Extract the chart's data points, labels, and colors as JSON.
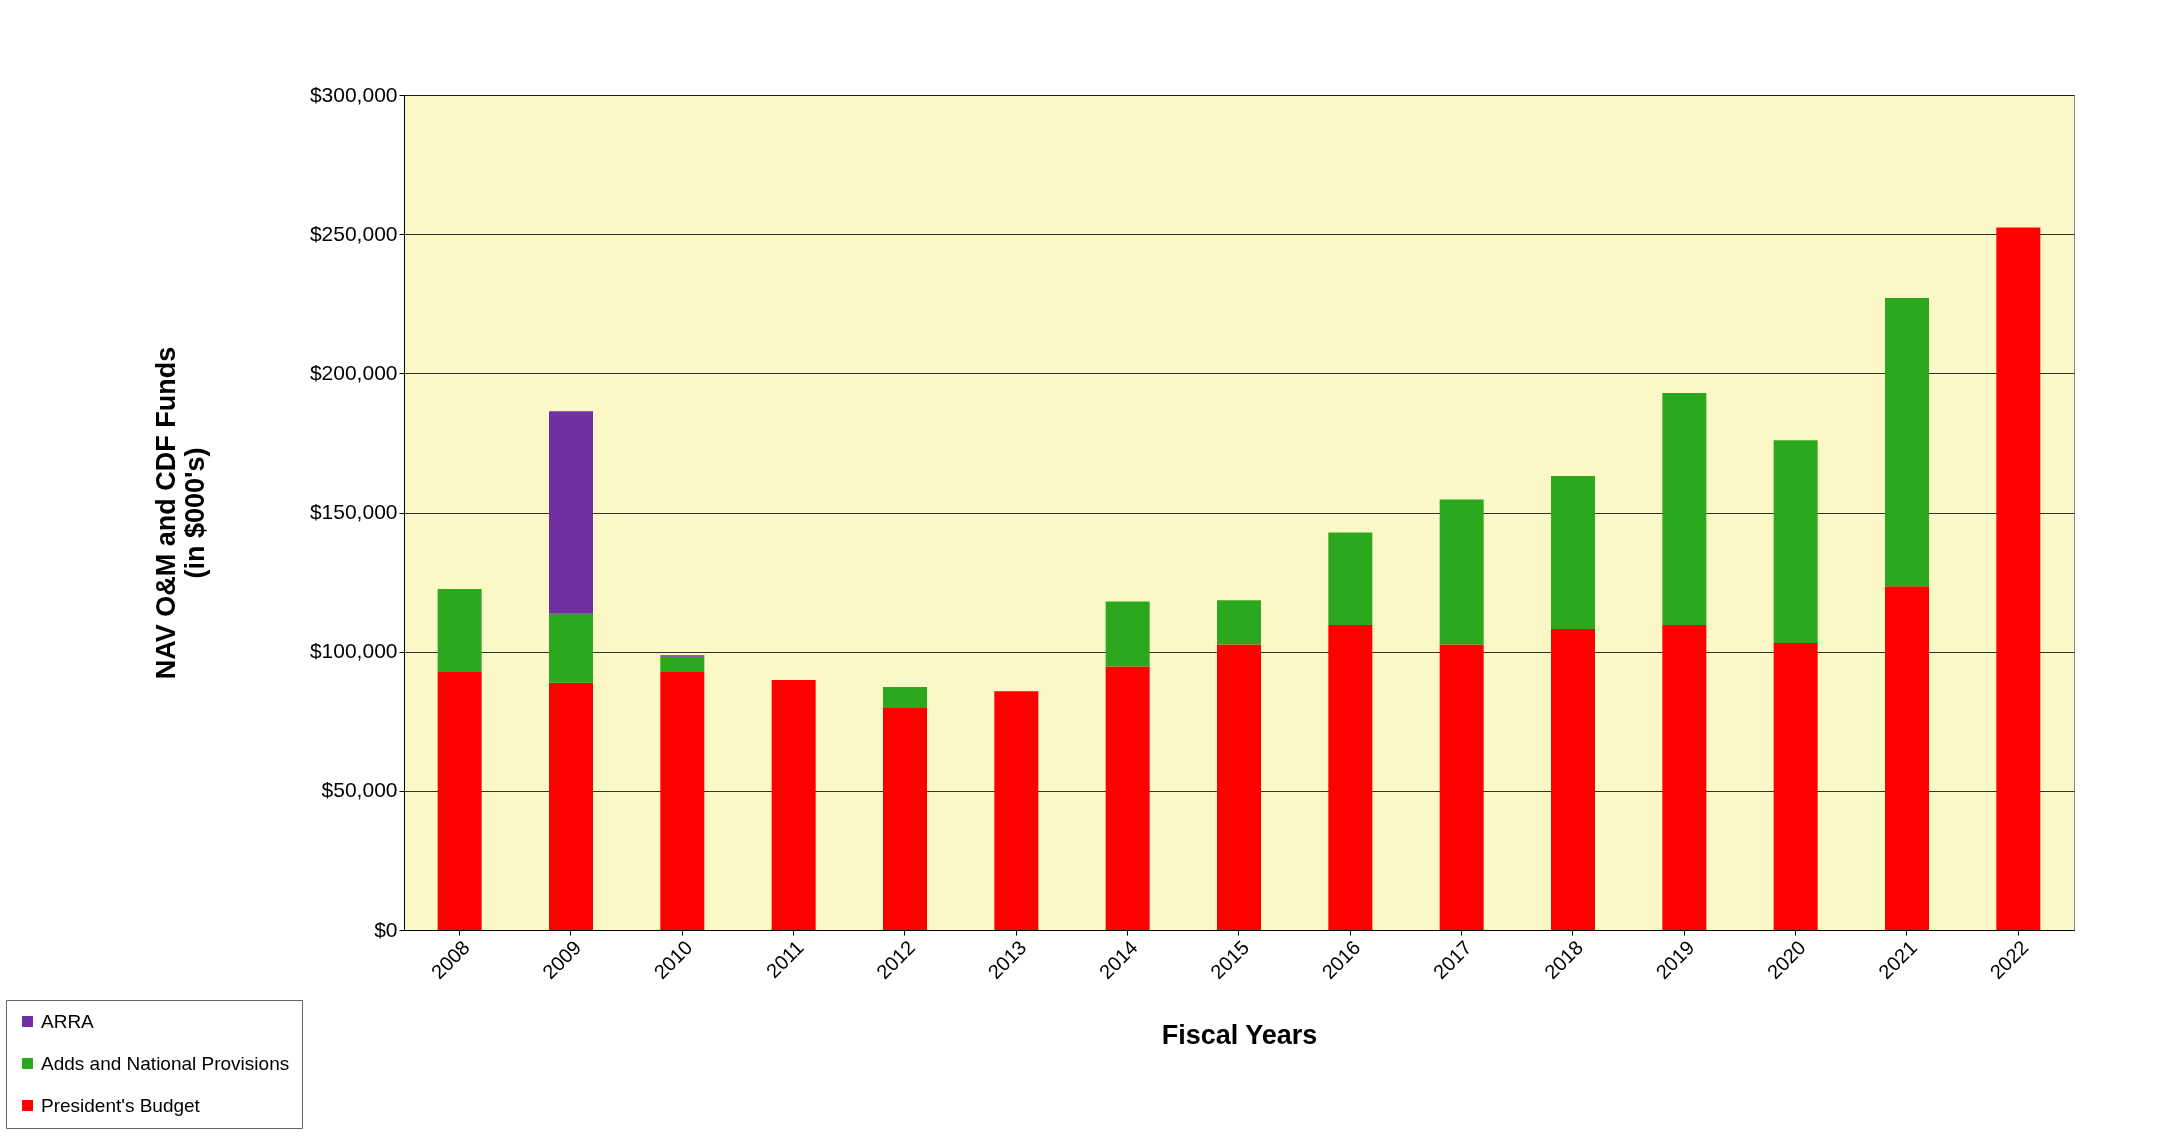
{
  "chart_data": {
    "type": "bar",
    "stacked": true,
    "xlabel": "Fiscal Years",
    "ylabel": "NAV O&M and CDF Funds\n(in $000's)",
    "categories": [
      "2008",
      "2009",
      "2010",
      "2011",
      "2012",
      "2013",
      "2014",
      "2015",
      "2016",
      "2017",
      "2018",
      "2019",
      "2020",
      "2021",
      "2022"
    ],
    "series": [
      {
        "name": "President's Budget",
        "color": "#ff0000",
        "values": [
          92700,
          88800,
          92700,
          89800,
          79800,
          85800,
          94700,
          102600,
          109600,
          102600,
          108100,
          109600,
          103100,
          123500,
          252400
        ]
      },
      {
        "name": "Adds and National Provisions",
        "color": "#2ca81e",
        "values": [
          29800,
          24800,
          5500,
          null,
          7500,
          null,
          23300,
          15900,
          33200,
          52100,
          55000,
          83300,
          72900,
          103600,
          null
        ]
      },
      {
        "name": "ARRA",
        "color": "#7030a0",
        "values": [
          null,
          72800,
          500,
          null,
          null,
          null,
          null,
          null,
          null,
          null,
          null,
          null,
          null,
          null,
          null
        ]
      }
    ],
    "ylim": [
      0,
      300000
    ],
    "yticks": [
      {
        "value": 0,
        "label": "$0"
      },
      {
        "value": 50000,
        "label": "$50,000"
      },
      {
        "value": 100000,
        "label": "$100,000"
      },
      {
        "value": 150000,
        "label": "$150,000"
      },
      {
        "value": 200000,
        "label": "$200,000"
      },
      {
        "value": 250000,
        "label": "$250,000"
      },
      {
        "value": 300000,
        "label": "$300,000"
      }
    ],
    "grid": "y",
    "legend": "bottom left"
  }
}
